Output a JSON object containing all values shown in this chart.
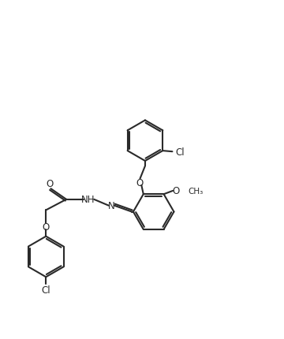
{
  "bond_color": "#2a2a2a",
  "bond_lw": 1.5,
  "background": "#ffffff",
  "figsize": [
    3.6,
    4.31
  ],
  "dpi": 100,
  "fs": 8.5,
  "fss": 7.5,
  "xlim": [
    0,
    10
  ],
  "ylim": [
    0,
    12
  ]
}
